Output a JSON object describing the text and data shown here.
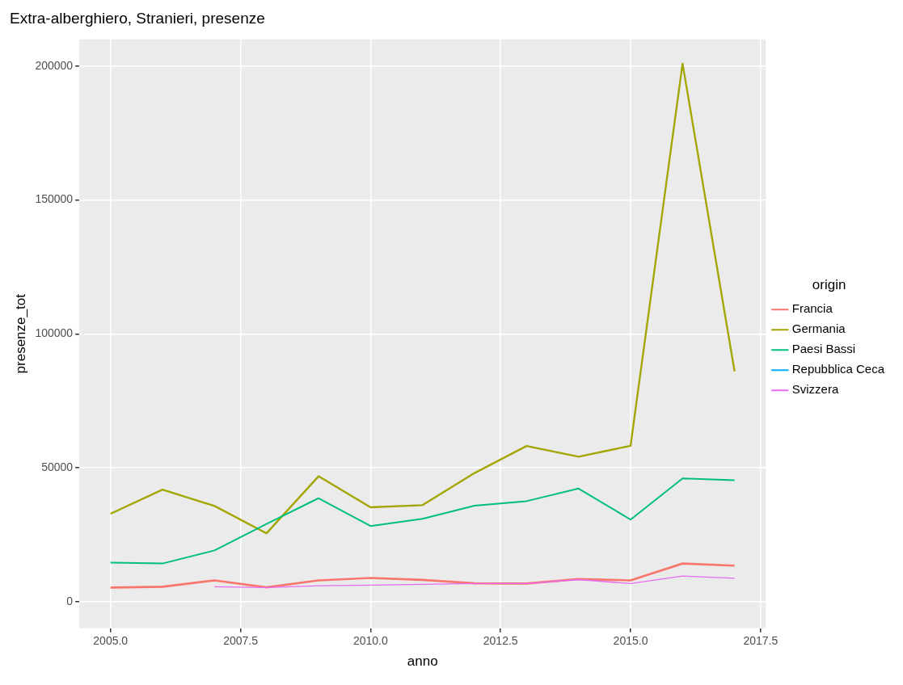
{
  "chart_data": {
    "type": "line",
    "title": "Extra-alberghiero, Stranieri, presenze",
    "xlabel": "anno",
    "ylabel": "presenze_tot",
    "legend_title": "origin",
    "x": [
      2005,
      2006,
      2007,
      2008,
      2009,
      2010,
      2011,
      2012,
      2013,
      2014,
      2015,
      2016,
      2017
    ],
    "series": [
      {
        "name": "Francia",
        "color": "#f8766d",
        "values": [
          5200,
          5500,
          7900,
          5300,
          7900,
          8800,
          8100,
          6800,
          6700,
          8400,
          7900,
          14200,
          13400
        ]
      },
      {
        "name": "Germania",
        "color": "#a3a500",
        "values": [
          32800,
          41800,
          35700,
          25500,
          46800,
          35200,
          36000,
          48000,
          58100,
          54100,
          58200,
          201000,
          86000
        ]
      },
      {
        "name": "Paesi Bassi",
        "color": "#00bf7d",
        "values": [
          14500,
          14200,
          19100,
          29000,
          38600,
          28200,
          30900,
          35800,
          37500,
          42200,
          30600,
          46000,
          45300
        ]
      },
      {
        "name": "Repubblica Ceca",
        "color": "#00b0f6",
        "values": [
          null,
          null,
          null,
          null,
          null,
          null,
          null,
          null,
          null,
          null,
          null,
          null,
          null
        ]
      },
      {
        "name": "Svizzera",
        "color": "#e76bf3",
        "values": [
          null,
          null,
          5500,
          5200,
          5900,
          6100,
          6400,
          6700,
          6700,
          8200,
          6700,
          9500,
          8700
        ]
      }
    ],
    "xlim": [
      2004.4,
      2017.6
    ],
    "xticks": [
      {
        "value": 2005,
        "label": "2005.0"
      },
      {
        "value": 2007.5,
        "label": "2007.5"
      },
      {
        "value": 2010,
        "label": "2010.0"
      },
      {
        "value": 2012.5,
        "label": "2012.5"
      },
      {
        "value": 2015,
        "label": "2015.0"
      },
      {
        "value": 2017.5,
        "label": "2017.5"
      }
    ],
    "ylim": [
      -10000,
      210000
    ],
    "yticks": [
      0,
      50000,
      100000,
      150000,
      200000
    ],
    "grid": true,
    "legend": "right",
    "marker": "none",
    "line_style": "solid"
  }
}
